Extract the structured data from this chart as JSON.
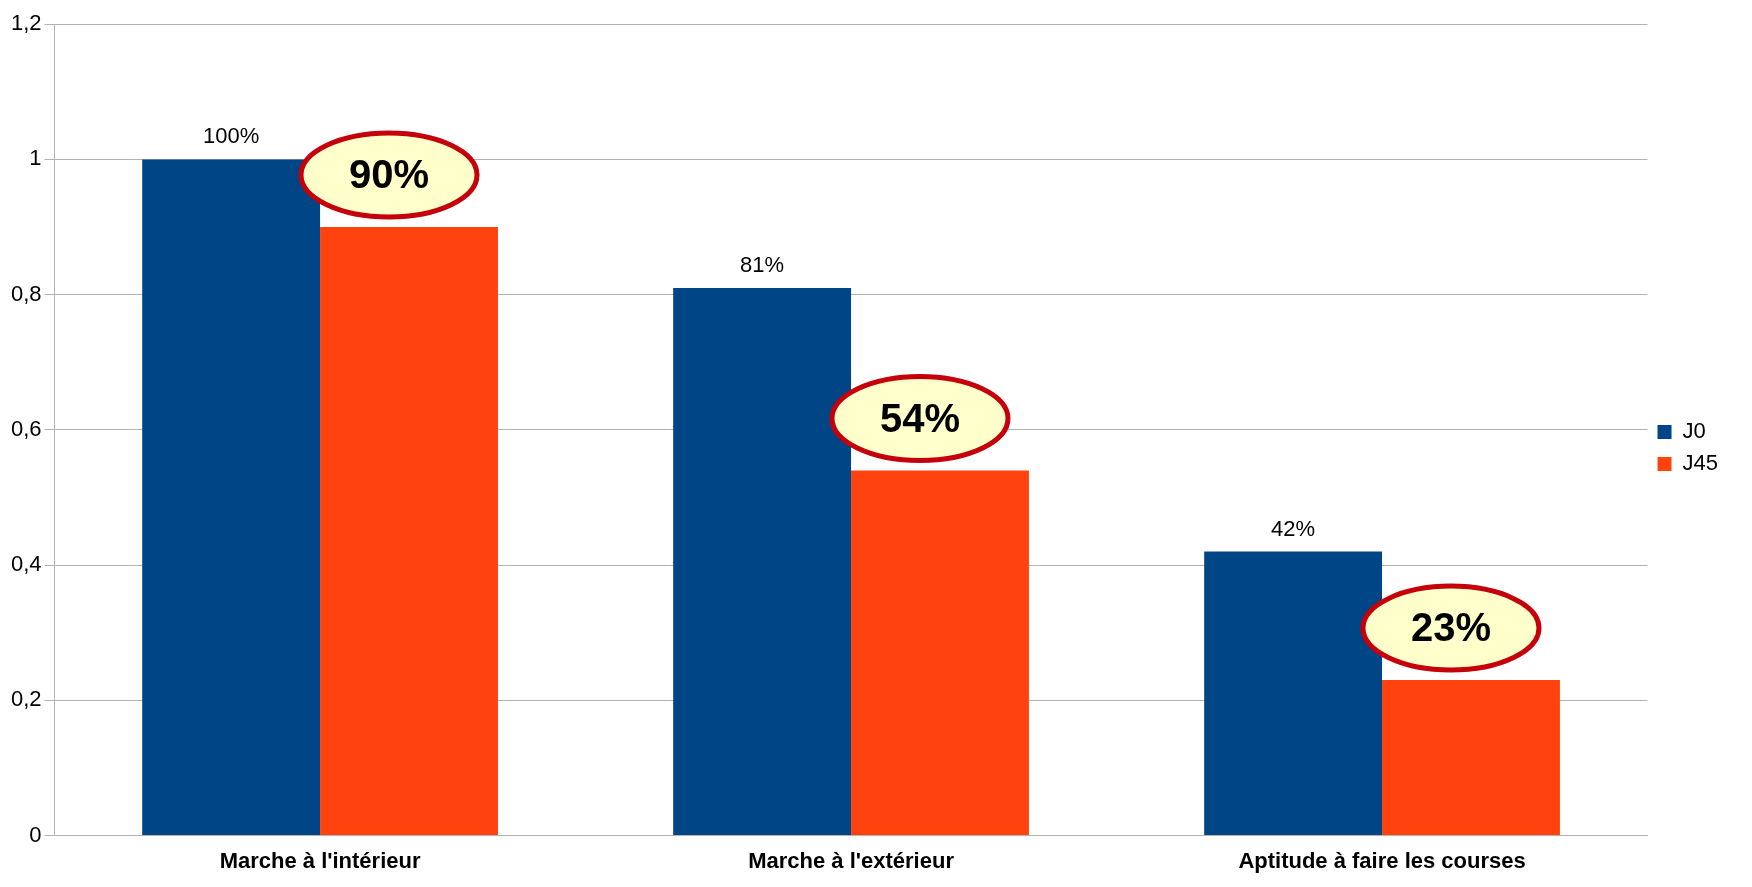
{
  "chart_data": {
    "type": "bar",
    "categories": [
      "Marche à l'intérieur",
      "Marche à l'extérieur",
      "Aptitude à faire les courses"
    ],
    "series": [
      {
        "name": "J0",
        "color": "#004586",
        "values": [
          1,
          0.81,
          0.42
        ],
        "value_labels": [
          "100%",
          "81%",
          "42%"
        ]
      },
      {
        "name": "J45",
        "color": "#ff420e",
        "values": [
          0.9,
          0.54,
          0.23
        ],
        "value_labels": [
          "90%",
          "54%",
          "23%"
        ]
      }
    ],
    "ylim": [
      0,
      1.2
    ],
    "yticks": [
      0,
      {
        "value": 0.2,
        "label": "0,2"
      },
      {
        "value": 0.4,
        "label": "0,4"
      },
      {
        "value": 0.6,
        "label": "0,6"
      },
      {
        "value": 0.8,
        "label": "0,8"
      },
      1,
      {
        "value": 1.2,
        "label": "1,2"
      }
    ],
    "grid": "y",
    "legend": "right"
  }
}
